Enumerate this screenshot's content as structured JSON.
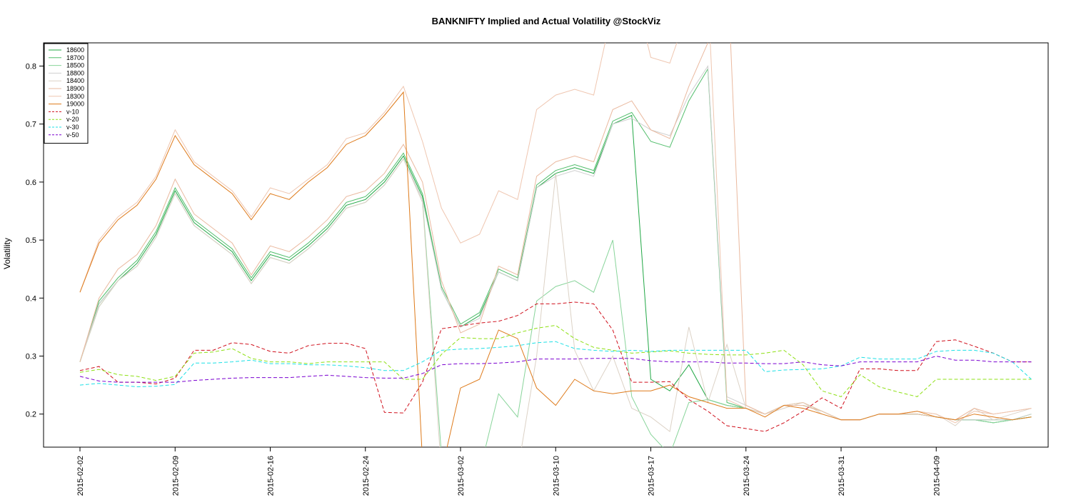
{
  "chart_data": {
    "type": "line",
    "title": "BANKNIFTY Implied and Actual Volatility @StockViz",
    "xlabel": "",
    "ylabel": "Volatility",
    "ylim": [
      0.143,
      0.84
    ],
    "yticks": [
      0.2,
      0.3,
      0.4,
      0.5,
      0.6,
      0.7,
      0.8
    ],
    "ytick_labels": [
      "0.2",
      "0.3",
      "0.4",
      "0.5",
      "0.6",
      "0.7",
      "0.8"
    ],
    "xtick_labels": [
      {
        "i": 0,
        "label": "2015-02-02"
      },
      {
        "i": 5,
        "label": "2015-02-09"
      },
      {
        "i": 10,
        "label": "2015-02-16"
      },
      {
        "i": 15,
        "label": "2015-02-24"
      },
      {
        "i": 20,
        "label": "2015-03-02"
      },
      {
        "i": 25,
        "label": "2015-03-10"
      },
      {
        "i": 30,
        "label": "2015-03-17"
      },
      {
        "i": 35,
        "label": "2015-03-24"
      },
      {
        "i": 40,
        "label": "2015-03-31"
      },
      {
        "i": 45,
        "label": "2015-04-09"
      }
    ],
    "x": [
      "2015-02-02",
      "2015-02-03",
      "2015-02-04",
      "2015-02-05",
      "2015-02-06",
      "2015-02-09",
      "2015-02-10",
      "2015-02-11",
      "2015-02-12",
      "2015-02-13",
      "2015-02-16",
      "2015-02-18",
      "2015-02-19",
      "2015-02-20",
      "2015-02-23",
      "2015-02-24",
      "2015-02-25",
      "2015-02-26",
      "2015-02-27",
      "2015-02-28",
      "2015-03-02",
      "2015-03-03",
      "2015-03-04",
      "2015-03-05",
      "2015-03-09",
      "2015-03-10",
      "2015-03-11",
      "2015-03-12",
      "2015-03-13",
      "2015-03-16",
      "2015-03-17",
      "2015-03-18",
      "2015-03-19",
      "2015-03-20",
      "2015-03-23",
      "2015-03-24",
      "2015-03-25",
      "2015-03-26",
      "2015-03-27",
      "2015-03-30",
      "2015-03-31",
      "2015-04-01",
      "2015-04-06",
      "2015-04-07",
      "2015-04-08",
      "2015-04-09",
      "2015-04-10",
      "2015-04-13",
      "2015-04-15",
      "2015-04-16",
      "2015-04-17"
    ],
    "legend_position": "top-left",
    "grid": false,
    "series": [
      {
        "name": "18600",
        "color": "#22a846",
        "dash": "",
        "values": [
          0.29,
          0.39,
          0.43,
          0.46,
          0.51,
          0.585,
          0.53,
          0.505,
          0.48,
          0.43,
          0.475,
          0.465,
          0.49,
          0.52,
          0.56,
          0.57,
          0.6,
          0.645,
          0.575,
          0.415,
          0.35,
          0.37,
          0.445,
          0.43,
          0.59,
          0.615,
          0.625,
          0.615,
          0.7,
          0.715,
          0.26,
          0.24,
          0.285,
          0.225,
          0.215,
          0.21,
          0.2,
          0.215,
          0.215,
          0.205,
          0.19,
          0.19,
          0.2,
          0.2,
          0.2,
          0.195,
          0.19,
          0.19,
          0.185,
          0.19,
          0.195
        ]
      },
      {
        "name": "18700",
        "color": "#52be6c",
        "dash": "",
        "values": [
          0.29,
          0.395,
          0.435,
          0.465,
          0.515,
          0.59,
          0.535,
          0.51,
          0.485,
          0.435,
          0.48,
          0.47,
          0.495,
          0.525,
          0.565,
          0.575,
          0.605,
          0.65,
          0.58,
          0.42,
          0.355,
          0.375,
          0.45,
          0.435,
          0.595,
          0.62,
          0.63,
          0.62,
          0.705,
          0.72,
          0.67,
          0.66,
          0.74,
          0.795,
          0.22,
          0.21,
          0.2,
          0.215,
          0.215,
          0.205,
          0.19,
          0.19,
          0.2,
          0.2,
          0.2,
          0.195,
          0.19,
          0.19,
          0.19,
          0.19,
          0.2
        ]
      },
      {
        "name": "18500",
        "color": "#88d49a",
        "dash": "",
        "values": [
          0.29,
          0.385,
          0.43,
          0.455,
          0.505,
          0.58,
          0.525,
          0.5,
          0.475,
          0.425,
          0.47,
          0.46,
          0.485,
          0.515,
          0.555,
          0.565,
          0.595,
          0.64,
          0.57,
          0.13,
          0.1,
          0.1,
          0.235,
          0.195,
          0.395,
          0.42,
          0.43,
          0.41,
          0.5,
          0.23,
          0.165,
          0.13,
          0.22,
          0.225,
          0.215,
          0.21,
          0.2,
          0.215,
          0.22,
          0.205,
          0.19,
          0.19,
          0.2,
          0.2,
          0.2,
          0.195,
          0.19,
          0.19,
          0.185,
          0.19,
          0.195
        ]
      },
      {
        "name": "18800",
        "color": "#cfcfcf",
        "dash": "",
        "values": [
          0.29,
          0.39,
          0.43,
          0.455,
          0.505,
          0.58,
          0.525,
          0.5,
          0.475,
          0.425,
          0.47,
          0.46,
          0.485,
          0.515,
          0.555,
          0.565,
          0.595,
          0.64,
          0.57,
          0.415,
          0.35,
          0.365,
          0.445,
          0.43,
          0.59,
          0.61,
          0.62,
          0.61,
          0.7,
          0.71,
          0.69,
          0.68,
          0.75,
          0.8,
          0.23,
          0.215,
          0.2,
          0.215,
          0.215,
          0.205,
          0.19,
          0.19,
          0.2,
          0.2,
          0.2,
          0.195,
          0.19,
          0.19,
          0.19,
          0.19,
          0.2
        ]
      },
      {
        "name": "18400",
        "color": "#dcd2c6",
        "dash": "",
        "values": [
          0.29,
          0.385,
          0.43,
          0.455,
          0.505,
          0.58,
          0.525,
          0.5,
          0.475,
          0.425,
          0.47,
          0.46,
          0.485,
          0.515,
          0.555,
          0.565,
          0.595,
          0.64,
          0.565,
          0.1,
          0.1,
          0.1,
          0.1,
          0.1,
          0.3,
          0.615,
          0.31,
          0.24,
          0.3,
          0.21,
          0.195,
          0.17,
          0.35,
          0.22,
          0.32,
          0.21,
          0.2,
          0.21,
          0.22,
          0.2,
          0.19,
          0.19,
          0.2,
          0.2,
          0.205,
          0.2,
          0.18,
          0.21,
          0.19,
          0.2,
          0.21
        ]
      },
      {
        "name": "18900",
        "color": "#eab99f",
        "dash": "",
        "values": [
          0.29,
          0.4,
          0.45,
          0.475,
          0.525,
          0.605,
          0.545,
          0.52,
          0.495,
          0.44,
          0.49,
          0.48,
          0.505,
          0.535,
          0.575,
          0.585,
          0.615,
          0.665,
          0.6,
          0.43,
          0.34,
          0.355,
          0.455,
          0.44,
          0.61,
          0.635,
          0.645,
          0.635,
          0.725,
          0.74,
          0.69,
          0.675,
          0.765,
          0.84,
          0.99,
          0.215,
          0.2,
          0.215,
          0.215,
          0.205,
          0.19,
          0.19,
          0.2,
          0.2,
          0.2,
          0.195,
          0.19,
          0.21,
          0.2,
          0.205,
          0.21
        ]
      },
      {
        "name": "18300",
        "color": "#efc6b0",
        "dash": "",
        "values": [
          0.41,
          0.5,
          0.54,
          0.565,
          0.61,
          0.69,
          0.635,
          0.61,
          0.585,
          0.54,
          0.59,
          0.58,
          0.605,
          0.63,
          0.675,
          0.685,
          0.72,
          0.765,
          0.67,
          0.555,
          0.495,
          0.51,
          0.585,
          0.57,
          0.725,
          0.75,
          0.76,
          0.75,
          0.9,
          0.95,
          0.815,
          0.805,
          0.9,
          0.93,
          0.225,
          0.21,
          0.2,
          0.215,
          0.22,
          0.205,
          0.19,
          0.19,
          0.2,
          0.2,
          0.205,
          0.2,
          0.185,
          0.205,
          0.2,
          0.205,
          0.21
        ]
      },
      {
        "name": "19000",
        "color": "#de7a1a",
        "dash": "",
        "values": [
          0.41,
          0.495,
          0.535,
          0.56,
          0.605,
          0.68,
          0.63,
          0.605,
          0.58,
          0.535,
          0.58,
          0.57,
          0.6,
          0.625,
          0.665,
          0.68,
          0.715,
          0.755,
          0.12,
          0.1,
          0.245,
          0.26,
          0.345,
          0.33,
          0.245,
          0.215,
          0.26,
          0.24,
          0.235,
          0.24,
          0.24,
          0.25,
          0.23,
          0.22,
          0.21,
          0.21,
          0.195,
          0.215,
          0.21,
          0.2,
          0.19,
          0.19,
          0.2,
          0.2,
          0.205,
          0.195,
          0.19,
          0.2,
          0.195,
          0.19,
          0.195
        ]
      },
      {
        "name": "v-10",
        "color": "#d0101c",
        "dash": "5,3",
        "values": [
          0.275,
          0.282,
          0.255,
          0.255,
          0.252,
          0.262,
          0.31,
          0.31,
          0.323,
          0.32,
          0.308,
          0.305,
          0.318,
          0.322,
          0.322,
          0.313,
          0.203,
          0.202,
          0.255,
          0.347,
          0.352,
          0.357,
          0.36,
          0.37,
          0.39,
          0.39,
          0.393,
          0.39,
          0.345,
          0.255,
          0.255,
          0.256,
          0.225,
          0.205,
          0.18,
          0.175,
          0.17,
          0.185,
          0.205,
          0.228,
          0.21,
          0.278,
          0.278,
          0.275,
          0.275,
          0.325,
          0.328,
          0.317,
          0.305,
          0.29,
          0.29
        ]
      },
      {
        "name": "v-20",
        "color": "#8ee014",
        "dash": "5,3",
        "values": [
          0.272,
          0.277,
          0.268,
          0.265,
          0.258,
          0.265,
          0.305,
          0.307,
          0.313,
          0.296,
          0.29,
          0.29,
          0.287,
          0.29,
          0.29,
          0.29,
          0.29,
          0.26,
          0.26,
          0.303,
          0.332,
          0.33,
          0.33,
          0.34,
          0.348,
          0.353,
          0.33,
          0.315,
          0.31,
          0.305,
          0.307,
          0.309,
          0.305,
          0.303,
          0.302,
          0.302,
          0.305,
          0.31,
          0.285,
          0.24,
          0.23,
          0.268,
          0.247,
          0.238,
          0.23,
          0.26,
          0.26,
          0.26,
          0.26,
          0.26,
          0.26
        ]
      },
      {
        "name": "v-30",
        "color": "#1ce0e6",
        "dash": "5,3",
        "values": [
          0.25,
          0.253,
          0.25,
          0.247,
          0.248,
          0.251,
          0.288,
          0.288,
          0.29,
          0.293,
          0.287,
          0.287,
          0.285,
          0.285,
          0.283,
          0.28,
          0.275,
          0.275,
          0.29,
          0.31,
          0.312,
          0.313,
          0.315,
          0.318,
          0.323,
          0.325,
          0.313,
          0.31,
          0.308,
          0.31,
          0.308,
          0.31,
          0.31,
          0.31,
          0.31,
          0.31,
          0.273,
          0.276,
          0.277,
          0.278,
          0.283,
          0.298,
          0.295,
          0.295,
          0.295,
          0.308,
          0.31,
          0.31,
          0.305,
          0.29,
          0.26
        ]
      },
      {
        "name": "v-50",
        "color": "#7a00d0",
        "dash": "5,3",
        "values": [
          0.265,
          0.257,
          0.255,
          0.255,
          0.255,
          0.255,
          0.258,
          0.26,
          0.262,
          0.263,
          0.263,
          0.263,
          0.265,
          0.267,
          0.265,
          0.263,
          0.262,
          0.262,
          0.27,
          0.285,
          0.287,
          0.287,
          0.288,
          0.29,
          0.295,
          0.295,
          0.295,
          0.296,
          0.296,
          0.296,
          0.292,
          0.29,
          0.29,
          0.29,
          0.288,
          0.288,
          0.287,
          0.287,
          0.29,
          0.285,
          0.283,
          0.29,
          0.29,
          0.29,
          0.29,
          0.3,
          0.293,
          0.293,
          0.29,
          0.29,
          0.29
        ]
      }
    ]
  }
}
